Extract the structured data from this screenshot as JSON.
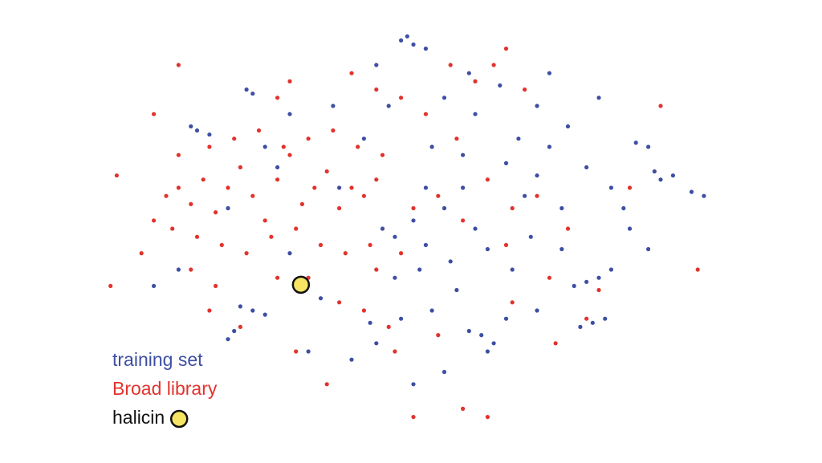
{
  "chart_data": {
    "type": "scatter",
    "xlim": [
      0,
      100
    ],
    "ylim": [
      0,
      100
    ],
    "grid": false,
    "legend": "lower left",
    "series": [
      {
        "name": "training set",
        "color": "#3e4fa3",
        "radius": 2.6,
        "x": [
          49,
          50,
          48,
          52,
          23,
          24,
          15,
          17,
          14,
          86,
          88,
          90,
          89,
          92,
          95,
          97,
          78,
          80,
          76,
          79,
          81,
          77,
          61,
          63,
          59,
          62,
          24,
          26,
          22,
          21,
          20,
          45,
          47,
          50,
          52,
          55,
          58,
          60,
          62,
          65,
          68,
          70,
          72,
          74,
          66,
          57,
          53,
          48,
          44,
          40,
          35,
          30,
          38,
          42,
          46,
          55,
          60,
          64,
          70,
          75,
          82,
          85,
          88,
          82,
          70,
          65,
          55,
          50,
          43,
          33,
          28,
          20,
          12,
          8,
          37,
          53,
          58,
          67,
          78,
          84,
          74,
          69,
          51,
          47,
          56,
          52,
          30,
          26,
          44,
          59,
          72,
          80
        ],
        "values": [
          97,
          95,
          96,
          94,
          84,
          83,
          74,
          73,
          75,
          71,
          70,
          62,
          64,
          63,
          59,
          58,
          37,
          38,
          36,
          27,
          28,
          26,
          24,
          22,
          25,
          20,
          30,
          29,
          31,
          25,
          23,
          50,
          48,
          52,
          46,
          55,
          60,
          50,
          45,
          66,
          58,
          63,
          70,
          55,
          40,
          35,
          30,
          28,
          22,
          18,
          33,
          44,
          60,
          72,
          80,
          82,
          78,
          85,
          80,
          75,
          60,
          50,
          45,
          40,
          30,
          28,
          15,
          12,
          27,
          20,
          65,
          55,
          40,
          36,
          80,
          70,
          68,
          72,
          65,
          55,
          45,
          48,
          40,
          38,
          42,
          60,
          78,
          70,
          90,
          88,
          88,
          82
        ]
      },
      {
        "name": "Broad library",
        "color": "#e2332e",
        "radius": 2.6,
        "x": [
          10,
          12,
          14,
          16,
          18,
          20,
          22,
          24,
          26,
          28,
          30,
          32,
          34,
          36,
          38,
          40,
          42,
          44,
          11,
          15,
          19,
          23,
          27,
          31,
          35,
          39,
          43,
          12,
          17,
          21,
          25,
          29,
          33,
          37,
          41,
          45,
          8,
          6,
          2,
          1,
          14,
          18,
          28,
          33,
          38,
          42,
          46,
          31,
          36,
          50,
          54,
          58,
          62,
          66,
          70,
          75,
          80,
          78,
          85,
          57,
          52,
          48,
          44,
          60,
          63,
          68,
          56,
          40,
          30,
          12,
          90,
          62,
          50,
          58,
          96,
          8,
          65,
          28,
          47,
          54,
          66,
          72,
          73,
          65,
          48,
          44,
          22,
          17
        ],
        "values": [
          58,
          60,
          56,
          62,
          54,
          60,
          65,
          58,
          52,
          62,
          68,
          56,
          60,
          64,
          55,
          60,
          58,
          62,
          50,
          48,
          46,
          44,
          48,
          50,
          46,
          44,
          46,
          68,
          70,
          72,
          74,
          70,
          72,
          74,
          70,
          68,
          52,
          44,
          63,
          36,
          40,
          36,
          38,
          38,
          32,
          30,
          26,
          20,
          12,
          55,
          58,
          52,
          62,
          55,
          58,
          50,
          35,
          28,
          60,
          72,
          78,
          82,
          84,
          86,
          90,
          84,
          90,
          88,
          86,
          90,
          80,
          4,
          4,
          6,
          40,
          78,
          94,
          82,
          20,
          24,
          32,
          38,
          22,
          46,
          44,
          40,
          26,
          30
        ]
      },
      {
        "name": "halicin",
        "color": "#f7e463",
        "radius": 10,
        "stroke": "#111111",
        "x": [
          31.8
        ],
        "values": [
          36.3
        ]
      }
    ]
  }
}
